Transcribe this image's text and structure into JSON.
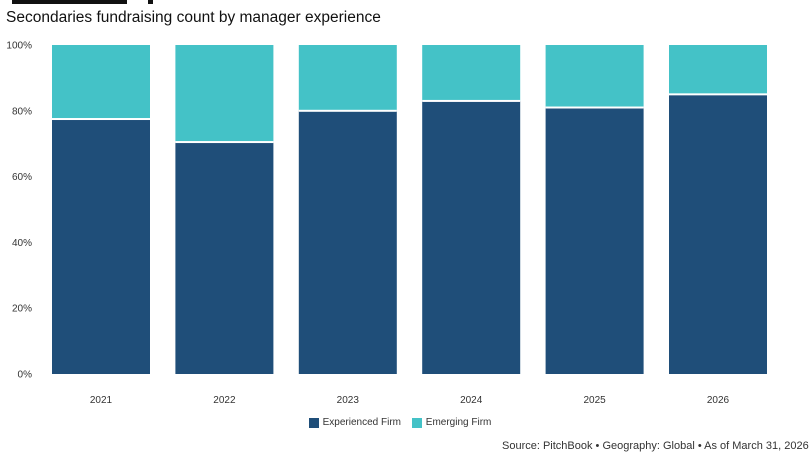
{
  "header": {
    "title": "Secondaries fundraising count by manager experience"
  },
  "footer": {
    "source": "Source: PitchBook • Geography: Global • As of March 31, 2026"
  },
  "colors": {
    "experienced": "#1f4e79",
    "emerging": "#44c2c7",
    "gap": "#ffffff"
  },
  "chart_data": {
    "type": "bar",
    "stacked": true,
    "percent_stacked": true,
    "categories": [
      "2021",
      "2022",
      "2023",
      "2024",
      "2025",
      "2026"
    ],
    "series": [
      {
        "name": "Experienced Firm",
        "values": [
          77.5,
          70.5,
          80,
          83,
          81,
          85
        ]
      },
      {
        "name": "Emerging Firm",
        "values": [
          22.5,
          29.5,
          20,
          17,
          19,
          15
        ]
      }
    ],
    "y_ticks": [
      "0%",
      "20%",
      "40%",
      "60%",
      "80%",
      "100%"
    ],
    "ylim": [
      0,
      100
    ],
    "grid": false,
    "legend_position": "bottom-center"
  }
}
